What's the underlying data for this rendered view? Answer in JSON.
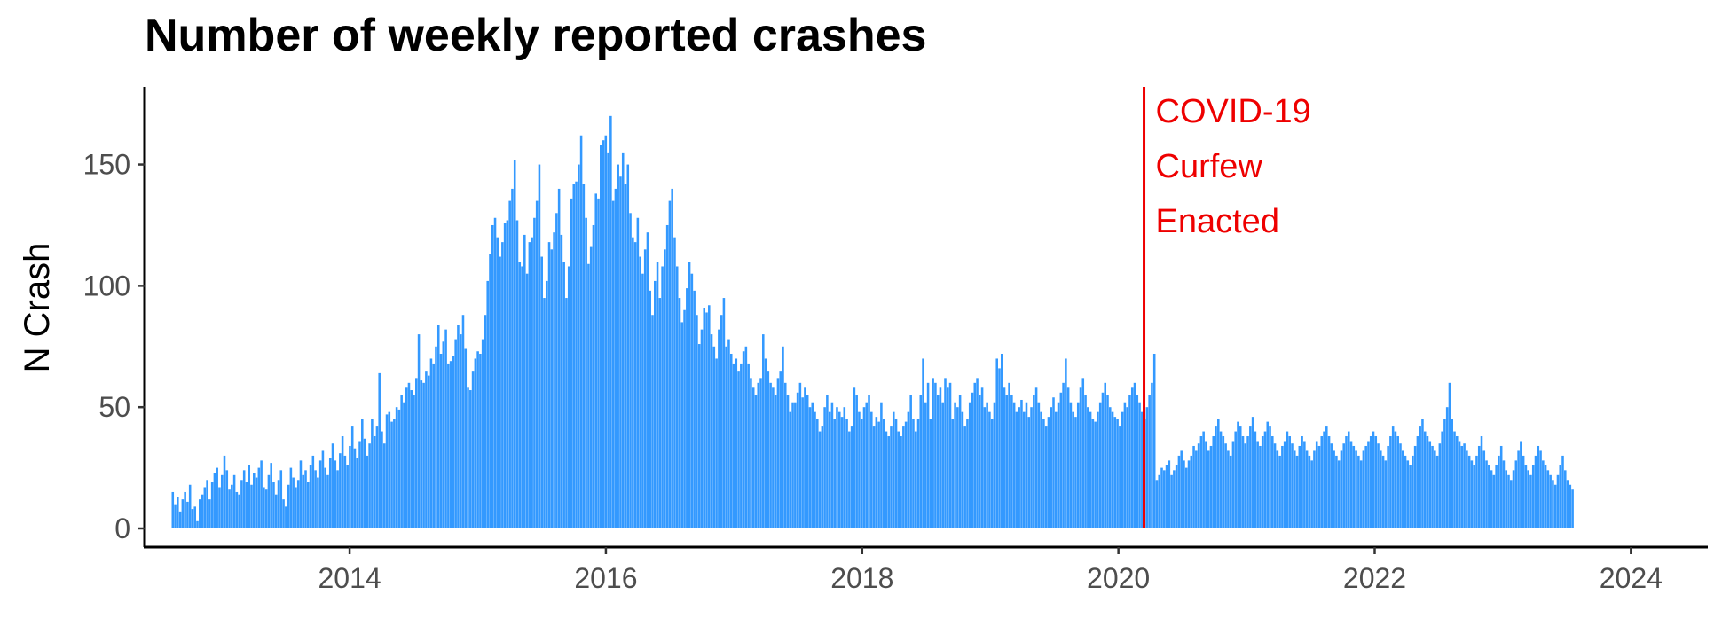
{
  "chart_data": {
    "type": "bar",
    "title": "Number of weekly reported crashes",
    "xlabel": "",
    "ylabel": "N Crash",
    "x_ticks": [
      "2014",
      "2016",
      "2018",
      "2020",
      "2022",
      "2024"
    ],
    "y_ticks": [
      "0",
      "50",
      "100",
      "150"
    ],
    "xlim": [
      2012.4,
      2024.6
    ],
    "ylim": [
      0,
      182
    ],
    "grid": false,
    "bar_color": "#3399ff",
    "annotation": {
      "x": 2020.2,
      "lines": [
        "COVID-19",
        "Curfew",
        "Enacted"
      ],
      "color": "#ee0000"
    },
    "series": [
      {
        "start": 2012.62,
        "step": 0.0192,
        "values": [
          15,
          10,
          13,
          7,
          12,
          15,
          11,
          18,
          8,
          9,
          3,
          12,
          14,
          17,
          20,
          12,
          19,
          23,
          25,
          17,
          22,
          30,
          24,
          16,
          18,
          22,
          15,
          14,
          20,
          24,
          19,
          26,
          18,
          23,
          21,
          25,
          28,
          17,
          16,
          22,
          27,
          19,
          14,
          20,
          24,
          12,
          9,
          18,
          25,
          21,
          17,
          20,
          28,
          22,
          24,
          19,
          26,
          30,
          24,
          21,
          28,
          32,
          25,
          22,
          29,
          35,
          28,
          24,
          31,
          38,
          30,
          26,
          34,
          42,
          33,
          29,
          36,
          45,
          37,
          30,
          35,
          45,
          38,
          42,
          64,
          40,
          35,
          47,
          48,
          44,
          45,
          50,
          49,
          55,
          52,
          58,
          60,
          57,
          55,
          62,
          80,
          61,
          60,
          65,
          63,
          70,
          68,
          75,
          84,
          72,
          77,
          82,
          68,
          69,
          71,
          78,
          84,
          80,
          88,
          74,
          58,
          57,
          65,
          70,
          73,
          72,
          78,
          88,
          102,
          113,
          125,
          128,
          120,
          112,
          118,
          126,
          127,
          135,
          140,
          152,
          127,
          110,
          108,
          121,
          105,
          118,
          120,
          128,
          135,
          150,
          112,
          95,
          102,
          118,
          115,
          122,
          130,
          140,
          121,
          110,
          95,
          108,
          136,
          142,
          143,
          150,
          162,
          142,
          128,
          109,
          116,
          125,
          138,
          136,
          158,
          160,
          162,
          155,
          170,
          135,
          140,
          150,
          145,
          155,
          142,
          150,
          130,
          120,
          118,
          128,
          112,
          105,
          115,
          122,
          98,
          88,
          102,
          110,
          95,
          108,
          115,
          125,
          135,
          140,
          120,
          108,
          95,
          85,
          90,
          99,
          110,
          105,
          98,
          88,
          76,
          82,
          91,
          89,
          92,
          80,
          75,
          70,
          82,
          88,
          95,
          75,
          78,
          72,
          68,
          70,
          65,
          68,
          73,
          75,
          68,
          62,
          58,
          55,
          60,
          62,
          80,
          70,
          65,
          60,
          58,
          55,
          62,
          65,
          75,
          60,
          55,
          48,
          52,
          52,
          56,
          60,
          54,
          58,
          55,
          50,
          52,
          48,
          45,
          40,
          42,
          50,
          55,
          48,
          52,
          45,
          50,
          48,
          46,
          50,
          45,
          40,
          42,
          58,
          55,
          48,
          45,
          50,
          52,
          55,
          48,
          42,
          46,
          44,
          52,
          45,
          40,
          38,
          42,
          48,
          45,
          40,
          38,
          42,
          44,
          48,
          55,
          45,
          40,
          45,
          55,
          70,
          52,
          60,
          45,
          62,
          60,
          55,
          58,
          52,
          62,
          58,
          60,
          45,
          52,
          50,
          55,
          48,
          42,
          45,
          52,
          56,
          60,
          62,
          55,
          58,
          50,
          52,
          48,
          45,
          52,
          70,
          66,
          72,
          58,
          55,
          60,
          55,
          52,
          48,
          50,
          53,
          48,
          52,
          46,
          50,
          55,
          58,
          52,
          48,
          45,
          42,
          46,
          50,
          54,
          48,
          52,
          56,
          60,
          70,
          58,
          52,
          48,
          46,
          52,
          58,
          62,
          55,
          50,
          48,
          45,
          44,
          48,
          52,
          56,
          60,
          55,
          50,
          48,
          46,
          45,
          42,
          48,
          52,
          50,
          55,
          58,
          60,
          55,
          52,
          48,
          45,
          50,
          55,
          60,
          72,
          20,
          22,
          25,
          24,
          26,
          28,
          22,
          24,
          26,
          30,
          32,
          28,
          25,
          28,
          30,
          34,
          32,
          35,
          38,
          40,
          36,
          32,
          34,
          38,
          42,
          45,
          40,
          38,
          35,
          32,
          30,
          36,
          40,
          44,
          42,
          38,
          35,
          38,
          42,
          46,
          40,
          36,
          34,
          38,
          40,
          44,
          42,
          38,
          35,
          32,
          30,
          34,
          36,
          40,
          38,
          35,
          32,
          30,
          34,
          38,
          36,
          32,
          30,
          28,
          32,
          36,
          34,
          38,
          40,
          42,
          38,
          35,
          32,
          30,
          28,
          32,
          35,
          38,
          40,
          36,
          34,
          32,
          30,
          28,
          32,
          34,
          36,
          38,
          40,
          38,
          35,
          32,
          30,
          28,
          34,
          38,
          42,
          40,
          38,
          35,
          32,
          30,
          28,
          26,
          30,
          34,
          38,
          42,
          45,
          40,
          38,
          36,
          34,
          32,
          30,
          35,
          40,
          45,
          50,
          60,
          45,
          40,
          38,
          36,
          34,
          35,
          32,
          30,
          28,
          26,
          30,
          34,
          38,
          32,
          28,
          26,
          24,
          22,
          26,
          30,
          34,
          28,
          24,
          22,
          20,
          24,
          28,
          32,
          36,
          30,
          26,
          24,
          22,
          26,
          30,
          34,
          32,
          28,
          26,
          24,
          22,
          20,
          18,
          22,
          26,
          30,
          24,
          20,
          18,
          16
        ]
      }
    ]
  }
}
